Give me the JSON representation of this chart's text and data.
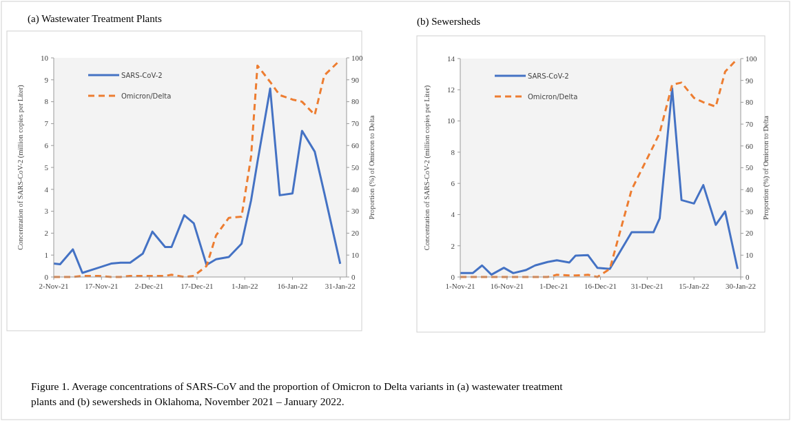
{
  "chart_data": [
    {
      "type": "line",
      "title": "(a) Wastewater Treatment Plants",
      "ylabel": "Concentration of SARS-CoV-2  (million  copies per Liter)",
      "y2label": "Proportion (%) of Omicron to Delta",
      "xlim": [
        "2021-11-02",
        "2022-02-02"
      ],
      "xticks": [
        {
          "value": "2021-11-02",
          "label": "2-Nov-21"
        },
        {
          "value": "2021-11-17",
          "label": "17-Nov-21"
        },
        {
          "value": "2021-12-02",
          "label": "2-Dec-21"
        },
        {
          "value": "2021-12-17",
          "label": "17-Dec-21"
        },
        {
          "value": "2022-01-01",
          "label": "1-Jan-22"
        },
        {
          "value": "2022-01-16",
          "label": "16-Jan-22"
        },
        {
          "value": "2022-01-31",
          "label": "31-Jan-22"
        }
      ],
      "ylim": [
        0,
        10
      ],
      "yticks": [
        0,
        1,
        2,
        3,
        4,
        5,
        6,
        7,
        8,
        9,
        10
      ],
      "y2lim": [
        0,
        100
      ],
      "y2ticks": [
        0,
        10,
        20,
        30,
        40,
        50,
        60,
        70,
        80,
        90,
        100
      ],
      "legend": "top left",
      "x": [
        "2021-11-02",
        "2021-11-04",
        "2021-11-08",
        "2021-11-11",
        "2021-11-16",
        "2021-11-20",
        "2021-11-23",
        "2021-11-26",
        "2021-11-30",
        "2021-12-03",
        "2021-12-07",
        "2021-12-09",
        "2021-12-13",
        "2021-12-16",
        "2021-12-20",
        "2021-12-23",
        "2021-12-27",
        "2021-12-31",
        "2022-01-03",
        "2022-01-05",
        "2022-01-09",
        "2022-01-12",
        "2022-01-16",
        "2022-01-19",
        "2022-01-23",
        "2022-01-26",
        "2022-01-31"
      ],
      "series": [
        {
          "name": "SARS-CoV-2",
          "color": "#4472c4",
          "line_style": "solid",
          "values": [
            0.61,
            0.58,
            1.26,
            0.19,
            0.42,
            0.61,
            0.65,
            0.65,
            1.07,
            2.07,
            1.37,
            1.37,
            2.82,
            2.45,
            0.55,
            0.81,
            0.91,
            1.52,
            3.5,
            5.25,
            8.6,
            3.73,
            3.81,
            6.67,
            5.72,
            3.83,
            0.6
          ]
        },
        {
          "name": "Omicron/Delta",
          "color": "#ed7d31",
          "line_style": "dashed",
          "axis": "y2",
          "values": [
            0,
            0,
            0,
            0.5,
            0.5,
            0,
            0,
            0.5,
            0.5,
            0.5,
            0.5,
            1,
            0,
            0.5,
            5,
            19,
            27,
            27.5,
            55,
            96.5,
            89,
            83,
            81,
            80,
            74,
            92,
            99
          ]
        }
      ],
      "annotations": [
        "Figure 1. Average  concentrations  of SARS-CoV and the proportion of Omicron to Delta variants in (a) wastewater treatment plants and (b) sewersheds  in Oklahoma,  November 2021 – January  2022."
      ]
    },
    {
      "type": "line",
      "title": "(b) Sewersheds",
      "ylabel": "Concentration of SARS-CoV-2  (million  copies per Liter)",
      "y2label": "Proportion (%) of Omicron to Delta",
      "xlim": [
        "2021-11-01",
        "2022-01-30"
      ],
      "xticks": [
        {
          "value": "2021-11-01",
          "label": "1-Nov-21"
        },
        {
          "value": "2021-11-16",
          "label": "16-Nov-21"
        },
        {
          "value": "2021-12-01",
          "label": "1-Dec-21"
        },
        {
          "value": "2021-12-16",
          "label": "16-Dec-21"
        },
        {
          "value": "2021-12-31",
          "label": "31-Dec-21"
        },
        {
          "value": "2022-01-15",
          "label": "15-Jan-22"
        },
        {
          "value": "2022-01-30",
          "label": "30-Jan-22"
        }
      ],
      "ylim": [
        0,
        14
      ],
      "yticks": [
        0,
        2,
        4,
        6,
        8,
        10,
        12,
        14
      ],
      "y2lim": [
        0,
        100
      ],
      "y2ticks": [
        0,
        10,
        20,
        30,
        40,
        50,
        60,
        70,
        80,
        90,
        100
      ],
      "legend": "top left",
      "x": [
        "2021-11-01",
        "2021-11-05",
        "2021-11-08",
        "2021-11-11",
        "2021-11-15",
        "2021-11-18",
        "2021-11-22",
        "2021-11-25",
        "2021-11-29",
        "2021-12-02",
        "2021-12-06",
        "2021-12-08",
        "2021-12-12",
        "2021-12-15",
        "2021-12-19",
        "2021-12-26",
        "2022-01-02",
        "2022-01-04",
        "2022-01-08",
        "2022-01-11",
        "2022-01-15",
        "2022-01-18",
        "2022-01-22",
        "2022-01-25",
        "2022-01-29"
      ],
      "series": [
        {
          "name": "SARS-CoV-2",
          "color": "#4472c4",
          "line_style": "solid",
          "values": [
            0.25,
            0.25,
            0.74,
            0.15,
            0.59,
            0.25,
            0.44,
            0.74,
            0.96,
            1.07,
            0.93,
            1.37,
            1.4,
            0.59,
            0.52,
            2.87,
            2.87,
            3.76,
            12.1,
            4.93,
            4.71,
            5.89,
            3.34,
            4.2,
            0.52
          ]
        },
        {
          "name": "Omicron/Delta",
          "color": "#ed7d31",
          "line_style": "dashed",
          "axis": "y2",
          "values": [
            0,
            0,
            0,
            0,
            0,
            0,
            0,
            0,
            0,
            1,
            0.7,
            0.7,
            1,
            0,
            3.7,
            40,
            60,
            66,
            88,
            89,
            82,
            80,
            78,
            94,
            100
          ]
        }
      ]
    }
  ]
}
